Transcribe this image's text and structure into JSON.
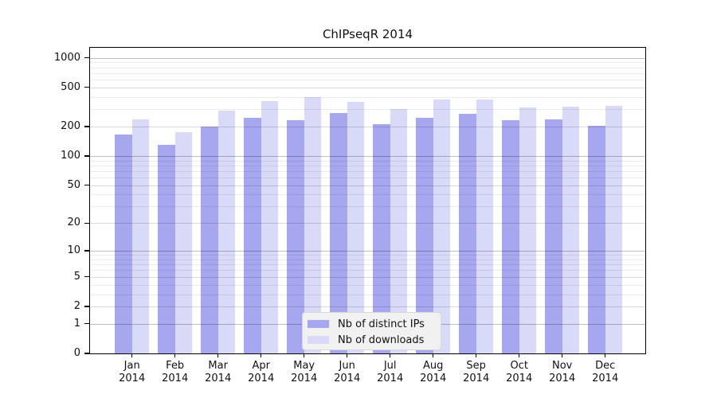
{
  "title": "ChIPseqR 2014",
  "chart_data": {
    "type": "bar",
    "title": "ChIPseqR 2014",
    "categories": [
      "Jan",
      "Feb",
      "Mar",
      "Apr",
      "May",
      "Jun",
      "Jul",
      "Aug",
      "Sep",
      "Oct",
      "Nov",
      "Dec"
    ],
    "year_label": "2014",
    "series": [
      {
        "name": "Nb of distinct IPs",
        "color": "#a7a7f0",
        "values": [
          165,
          130,
          200,
          245,
          230,
          275,
          210,
          245,
          270,
          230,
          235,
          205
        ]
      },
      {
        "name": "Nb of downloads",
        "color": "#d9d9f8",
        "values": [
          235,
          175,
          290,
          365,
          400,
          355,
          300,
          375,
          380,
          315,
          320,
          325
        ]
      }
    ],
    "yscale": "log10(value+1)",
    "y_ticks": [
      0,
      1,
      2,
      5,
      10,
      20,
      50,
      100,
      200,
      500,
      1000
    ],
    "ylim": [
      0,
      1240
    ],
    "grid": true,
    "legend_position": "bottom-center-inside"
  }
}
